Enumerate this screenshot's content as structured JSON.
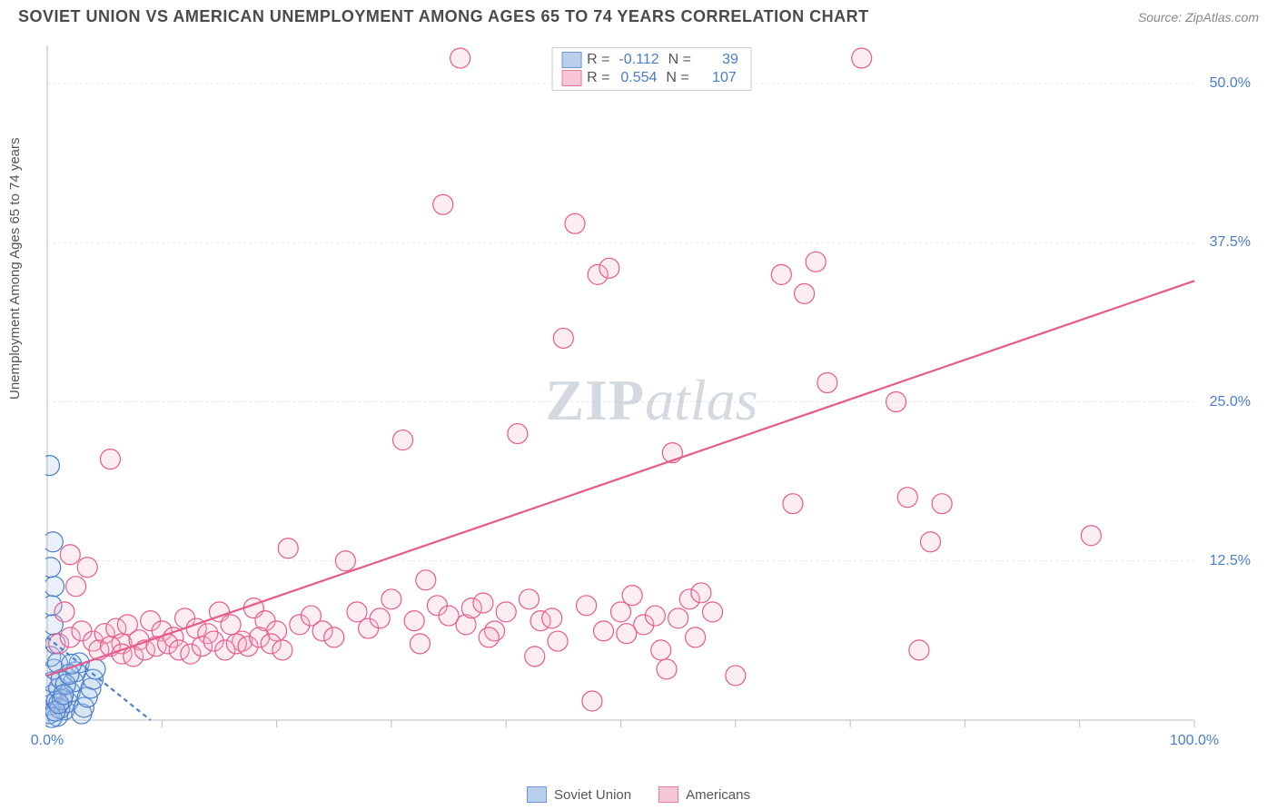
{
  "title": "SOVIET UNION VS AMERICAN UNEMPLOYMENT AMONG AGES 65 TO 74 YEARS CORRELATION CHART",
  "source_label": "Source: ZipAtlas.com",
  "y_axis_label": "Unemployment Among Ages 65 to 74 years",
  "chart": {
    "type": "scatter",
    "xlim": [
      0,
      100
    ],
    "ylim": [
      0,
      53
    ],
    "x_ticks": [
      0,
      10,
      20,
      30,
      40,
      50,
      60,
      70,
      80,
      90,
      100
    ],
    "x_tick_labels": {
      "0": "0.0%",
      "100": "100.0%"
    },
    "y_grid": [
      12.5,
      25.0,
      37.5,
      50.0
    ],
    "y_tick_labels": {
      "12.5": "12.5%",
      "25.0": "25.0%",
      "37.5": "37.5%",
      "50.0": "50.0%"
    },
    "background_color": "#ffffff",
    "grid_color": "#e8e8e8",
    "axis_color": "#bbbbbb",
    "tick_label_color": "#4a7ecb",
    "marker_radius": 11,
    "marker_fill_opacity": 0.25,
    "series": {
      "soviet": {
        "label": "Soviet Union",
        "color_stroke": "#4a7ecb",
        "color_fill": "#a8c4e8",
        "R": "-0.112",
        "N": "39",
        "trend": {
          "x1": 0,
          "y1": 6.5,
          "x2": 9,
          "y2": 0
        },
        "points": [
          [
            0.2,
            0.5
          ],
          [
            0.3,
            1.2
          ],
          [
            0.5,
            2.0
          ],
          [
            0.4,
            3.0
          ],
          [
            0.6,
            4.0
          ],
          [
            0.3,
            5.0
          ],
          [
            0.8,
            1.5
          ],
          [
            1.0,
            2.5
          ],
          [
            1.2,
            3.2
          ],
          [
            0.9,
            4.5
          ],
          [
            0.7,
            6.0
          ],
          [
            0.5,
            7.5
          ],
          [
            0.4,
            9.0
          ],
          [
            0.6,
            10.5
          ],
          [
            0.3,
            12.0
          ],
          [
            0.5,
            14.0
          ],
          [
            0.2,
            20.0
          ],
          [
            1.5,
            0.8
          ],
          [
            1.8,
            1.4
          ],
          [
            2.0,
            2.2
          ],
          [
            2.3,
            3.0
          ],
          [
            2.5,
            3.8
          ],
          [
            2.8,
            4.5
          ],
          [
            3.0,
            0.5
          ],
          [
            3.2,
            1.0
          ],
          [
            3.5,
            1.8
          ],
          [
            3.8,
            2.5
          ],
          [
            4.0,
            3.2
          ],
          [
            4.2,
            4.0
          ],
          [
            0.9,
            0.3
          ],
          [
            1.1,
            0.9
          ],
          [
            1.3,
            1.6
          ],
          [
            1.6,
            2.8
          ],
          [
            1.9,
            3.6
          ],
          [
            2.1,
            4.4
          ],
          [
            0.4,
            0.2
          ],
          [
            0.7,
            0.7
          ],
          [
            1.0,
            1.3
          ],
          [
            1.4,
            2.0
          ]
        ]
      },
      "american": {
        "label": "Americans",
        "color_stroke": "#e85a8a",
        "color_fill": "#f5b8cc",
        "R": "0.554",
        "N": "107",
        "trend": {
          "x1": 0,
          "y1": 3.5,
          "x2": 100,
          "y2": 34.5
        },
        "points": [
          [
            1,
            6
          ],
          [
            2,
            6.5
          ],
          [
            3,
            7
          ],
          [
            4,
            6.2
          ],
          [
            5,
            6.8
          ],
          [
            6,
            7.2
          ],
          [
            6.5,
            6.0
          ],
          [
            7,
            7.5
          ],
          [
            8,
            6.3
          ],
          [
            9,
            7.8
          ],
          [
            10,
            7.0
          ],
          [
            11,
            6.5
          ],
          [
            12,
            8.0
          ],
          [
            13,
            7.2
          ],
          [
            14,
            6.8
          ],
          [
            15,
            8.5
          ],
          [
            16,
            7.5
          ],
          [
            17,
            6.2
          ],
          [
            18,
            8.8
          ],
          [
            19,
            7.8
          ],
          [
            20,
            7.0
          ],
          [
            21,
            13.5
          ],
          [
            22,
            7.5
          ],
          [
            23,
            8.2
          ],
          [
            24,
            7.0
          ],
          [
            25,
            6.5
          ],
          [
            26,
            12.5
          ],
          [
            27,
            8.5
          ],
          [
            28,
            7.2
          ],
          [
            29,
            8.0
          ],
          [
            30,
            9.5
          ],
          [
            31,
            22.0
          ],
          [
            32,
            7.8
          ],
          [
            33,
            11.0
          ],
          [
            34,
            9.0
          ],
          [
            34.5,
            40.5
          ],
          [
            35,
            8.2
          ],
          [
            36,
            52.0
          ],
          [
            36.5,
            7.5
          ],
          [
            37,
            8.8
          ],
          [
            38,
            9.2
          ],
          [
            39,
            7.0
          ],
          [
            40,
            8.5
          ],
          [
            41,
            22.5
          ],
          [
            42,
            9.5
          ],
          [
            43,
            7.8
          ],
          [
            44,
            8.0
          ],
          [
            45,
            30.0
          ],
          [
            45.5,
            52.0
          ],
          [
            46,
            39.0
          ],
          [
            47,
            9.0
          ],
          [
            48,
            35.0
          ],
          [
            48.5,
            7.0
          ],
          [
            49,
            35.5
          ],
          [
            50,
            8.5
          ],
          [
            51,
            9.8
          ],
          [
            52,
            7.5
          ],
          [
            53,
            8.2
          ],
          [
            54,
            4.0
          ],
          [
            54.5,
            21.0
          ],
          [
            55,
            8.0
          ],
          [
            56,
            9.5
          ],
          [
            57,
            10.0
          ],
          [
            58,
            8.5
          ],
          [
            60,
            3.5
          ],
          [
            64,
            35.0
          ],
          [
            65,
            17.0
          ],
          [
            66,
            33.5
          ],
          [
            67,
            36.0
          ],
          [
            68,
            26.5
          ],
          [
            71,
            52.0
          ],
          [
            74,
            25.0
          ],
          [
            75,
            17.5
          ],
          [
            76,
            5.5
          ],
          [
            77,
            14.0
          ],
          [
            78,
            17.0
          ],
          [
            91,
            14.5
          ],
          [
            5.5,
            20.5
          ],
          [
            2.5,
            10.5
          ],
          [
            3.5,
            12.0
          ],
          [
            1.5,
            8.5
          ],
          [
            2.0,
            13.0
          ],
          [
            4.5,
            5.5
          ],
          [
            5.5,
            5.8
          ],
          [
            6.5,
            5.2
          ],
          [
            7.5,
            5.0
          ],
          [
            8.5,
            5.5
          ],
          [
            9.5,
            5.8
          ],
          [
            10.5,
            6.0
          ],
          [
            11.5,
            5.5
          ],
          [
            12.5,
            5.2
          ],
          [
            13.5,
            5.8
          ],
          [
            14.5,
            6.2
          ],
          [
            15.5,
            5.5
          ],
          [
            16.5,
            6.0
          ],
          [
            17.5,
            5.8
          ],
          [
            18.5,
            6.5
          ],
          [
            19.5,
            6.0
          ],
          [
            20.5,
            5.5
          ],
          [
            47.5,
            1.5
          ],
          [
            32.5,
            6.0
          ],
          [
            38.5,
            6.5
          ],
          [
            42.5,
            5.0
          ],
          [
            44.5,
            6.2
          ],
          [
            50.5,
            6.8
          ],
          [
            53.5,
            5.5
          ],
          [
            56.5,
            6.5
          ]
        ]
      }
    }
  },
  "watermark": {
    "zip": "ZIP",
    "atlas": "atlas"
  },
  "bottom_legend": [
    "Soviet Union",
    "Americans"
  ]
}
